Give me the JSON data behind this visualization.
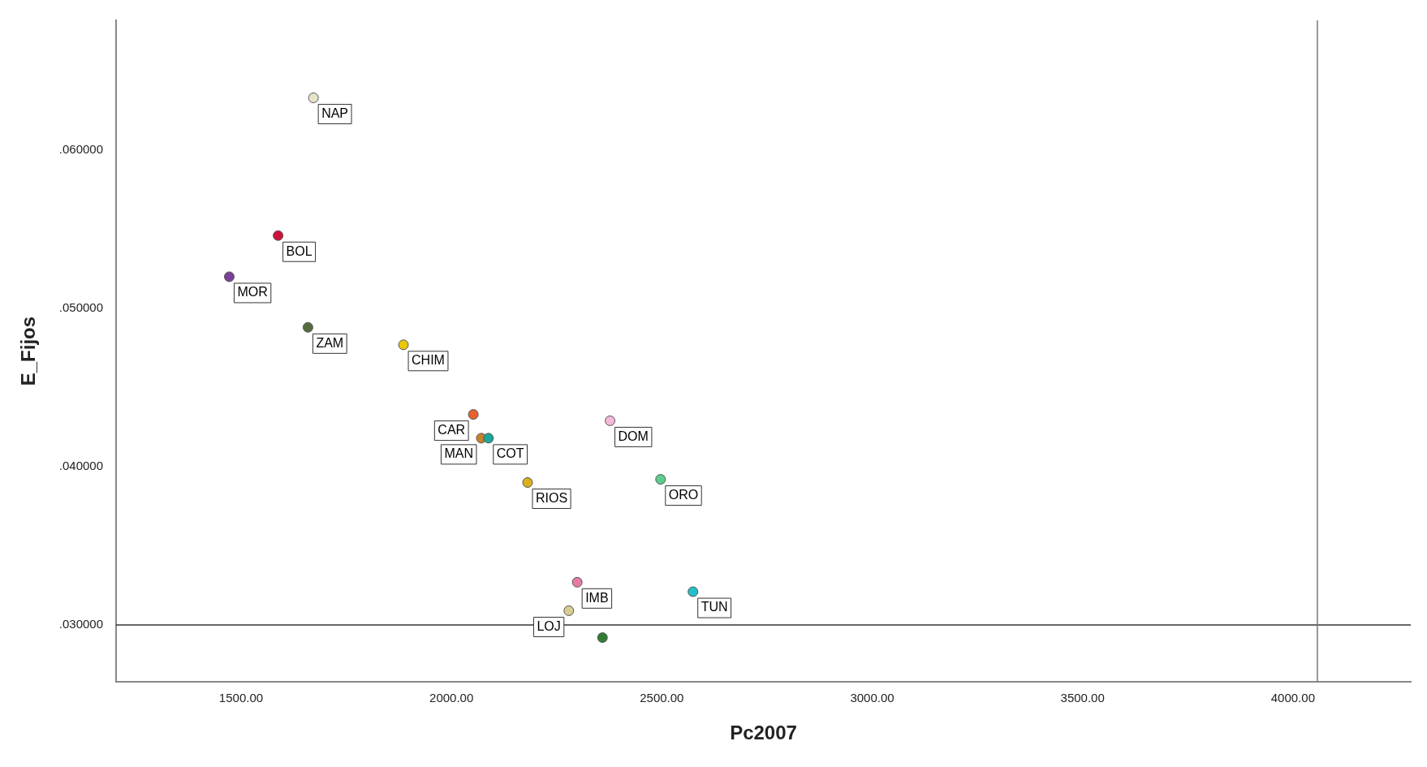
{
  "chart_data": {
    "type": "scatter",
    "xlabel": "Pc2007",
    "ylabel": "E_Fijos",
    "xlim": [
      1203,
      4280
    ],
    "ylim": [
      0.0264,
      0.0682
    ],
    "xticks": [
      {
        "value": 1500,
        "label": "1500.00"
      },
      {
        "value": 2000,
        "label": "2000.00"
      },
      {
        "value": 2500,
        "label": "2500.00"
      },
      {
        "value": 3000,
        "label": "3000.00"
      },
      {
        "value": 3500,
        "label": "3500.00"
      },
      {
        "value": 4000,
        "label": "4000.00"
      }
    ],
    "yticks": [
      {
        "value": 0.03,
        "label": ".030000"
      },
      {
        "value": 0.04,
        "label": ".040000"
      },
      {
        "value": 0.05,
        "label": ".050000"
      },
      {
        "value": 0.06,
        "label": ".060000"
      }
    ],
    "grid": false,
    "legend": false,
    "marker": "circle",
    "ref_lines": [
      {
        "axis": "y",
        "value": 0.03,
        "color": "#333333"
      },
      {
        "axis": "x",
        "value": 4058,
        "color": "#777777"
      }
    ],
    "series": [
      {
        "name": "NAP",
        "color": "#e8e4cc",
        "x": [
          1672
        ],
        "values": [
          0.0633
        ]
      },
      {
        "name": "BOL",
        "color": "#d0103a",
        "x": [
          1588
        ],
        "values": [
          0.0546
        ]
      },
      {
        "name": "MOR",
        "color": "#7b3f98",
        "x": [
          1472
        ],
        "values": [
          0.052
        ]
      },
      {
        "name": "ZAM",
        "color": "#556b3f",
        "x": [
          1659
        ],
        "values": [
          0.0488
        ]
      },
      {
        "name": "CHIM",
        "color": "#e8c800",
        "x": [
          1886
        ],
        "values": [
          0.0477
        ]
      },
      {
        "name": "CAR",
        "color": "#e8602c",
        "x": [
          2052
        ],
        "values": [
          0.0433
        ]
      },
      {
        "name": "COT",
        "color": "#1aa89a",
        "x": [
          2088
        ],
        "values": [
          0.0418
        ]
      },
      {
        "name": "MAN",
        "color": "#c8822c",
        "x": [
          2071
        ],
        "values": [
          0.0418
        ]
      },
      {
        "name": "DOM",
        "color": "#f4b8d8",
        "x": [
          2377
        ],
        "values": [
          0.0429
        ]
      },
      {
        "name": "RIOS",
        "color": "#d8b020",
        "x": [
          2181
        ],
        "values": [
          0.039
        ]
      },
      {
        "name": "ORO",
        "color": "#5ccf8c",
        "x": [
          2497
        ],
        "values": [
          0.0392
        ]
      },
      {
        "name": "IMB",
        "color": "#e87aa8",
        "x": [
          2299
        ],
        "values": [
          0.0327
        ]
      },
      {
        "name": "TUN",
        "color": "#22c0c8",
        "x": [
          2574
        ],
        "values": [
          0.0321
        ]
      },
      {
        "name": "LOJ",
        "color": "#d8cc90",
        "x": [
          2279
        ],
        "values": [
          0.0309
        ]
      },
      {
        "color": "#2e7d32",
        "x": [
          2359
        ],
        "values": [
          0.0292
        ]
      }
    ]
  }
}
